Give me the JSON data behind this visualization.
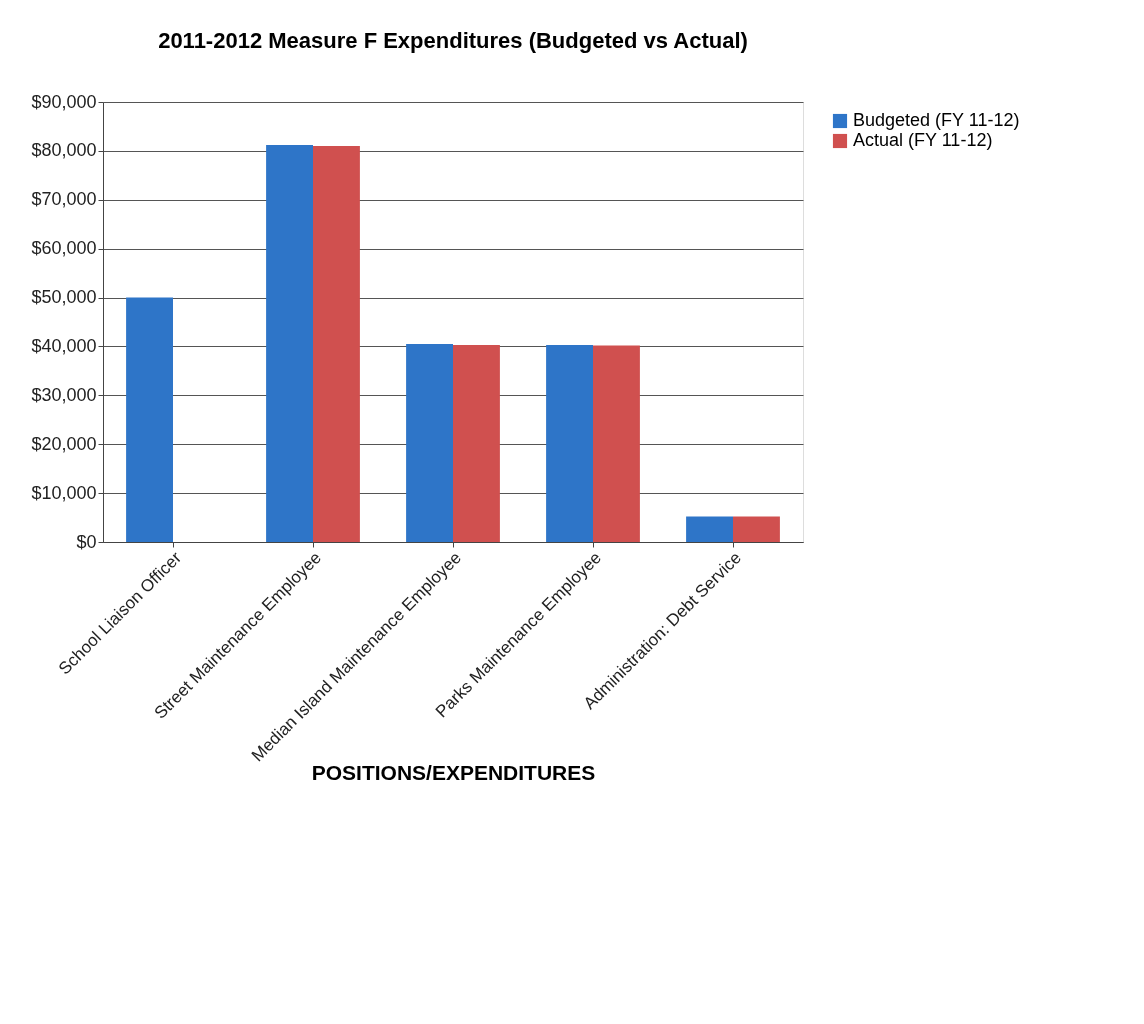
{
  "chart_data": {
    "type": "bar",
    "title": "2011-2012 Measure F Expenditures (Budgeted vs Actual)",
    "xlabel": "POSITIONS/EXPENDITURES",
    "categories": [
      "School Liaison Officer",
      "Street Maintenance Employee",
      "Median Island Maintenance Employee",
      "Parks Maintenance Employee",
      "Administration: Debt Service"
    ],
    "series": [
      {
        "name": "Budgeted (FY 11-12)",
        "color": "#2e75c8",
        "values": [
          50000,
          81200,
          40500,
          40300,
          5200
        ]
      },
      {
        "name": "Actual (FY 11-12)",
        "color": "#d0504f",
        "values": [
          null,
          81000,
          40300,
          40200,
          5200
        ]
      }
    ],
    "ylim": [
      0,
      90000
    ],
    "yticks": [
      {
        "value": 0,
        "label": "$0"
      },
      {
        "value": 10000,
        "label": "$10,000"
      },
      {
        "value": 20000,
        "label": "$20,000"
      },
      {
        "value": 30000,
        "label": "$30,000"
      },
      {
        "value": 40000,
        "label": "$40,000"
      },
      {
        "value": 50000,
        "label": "$50,000"
      },
      {
        "value": 60000,
        "label": "$60,000"
      },
      {
        "value": 70000,
        "label": "$70,000"
      },
      {
        "value": 80000,
        "label": "$80,000"
      },
      {
        "value": 90000,
        "label": "$90,000"
      }
    ],
    "grid": "y",
    "legend": "right"
  }
}
